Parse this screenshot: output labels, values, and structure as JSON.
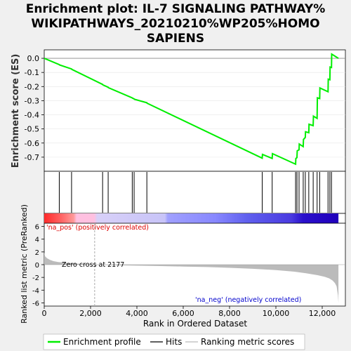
{
  "title_line1": "Enrichment plot: IL-7 SIGNALING PATHWAY%",
  "title_line2": "WIKIPATHWAYS_20210210%WP205%HOMO",
  "title_line3": "SAPIENS",
  "colors": {
    "es_line": "#00ee00",
    "hits": "#000000",
    "metric_fill": "#bbbbbb",
    "pos_label": "#dd0000",
    "neg_label": "#0000cc",
    "zero_line": "#aaaaaa",
    "heat_gradient": [
      "#ff3333",
      "#ff7777",
      "#ffbbdd",
      "#ccccf8",
      "#9999ff",
      "#5555ee",
      "#2200cc"
    ]
  },
  "chart_data": [
    {
      "type": "line",
      "name": "Enrichment profile",
      "ylabel": "Enrichment score (ES)",
      "xlim": [
        0,
        13000
      ],
      "ylim": [
        -0.8,
        0.06
      ],
      "yticks": [
        0.0,
        -0.1,
        -0.2,
        -0.3,
        -0.4,
        -0.5,
        -0.6,
        -0.7
      ],
      "ytick_labels": [
        "0.0",
        "-0.1",
        "-0.2",
        "-0.3",
        "-0.4",
        "-0.5",
        "-0.6",
        "-0.7"
      ],
      "x": [
        0,
        650,
        660,
        1180,
        1190,
        2520,
        2530,
        2760,
        2770,
        3800,
        3810,
        3880,
        3890,
        4430,
        4440,
        9410,
        9420,
        9840,
        9850,
        10850,
        10860,
        10910,
        10920,
        11000,
        11010,
        11180,
        11190,
        11270,
        11280,
        11420,
        11430,
        11610,
        11620,
        11780,
        11790,
        11890,
        11900,
        12250,
        12260,
        12330,
        12340,
        12400,
        12410,
        12700
      ],
      "y": [
        0.0,
        -0.045,
        -0.047,
        -0.075,
        -0.078,
        -0.185,
        -0.188,
        -0.205,
        -0.208,
        -0.28,
        -0.282,
        -0.287,
        -0.29,
        -0.315,
        -0.318,
        -0.707,
        -0.68,
        -0.709,
        -0.675,
        -0.75,
        -0.71,
        -0.703,
        -0.655,
        -0.648,
        -0.607,
        -0.625,
        -0.575,
        -0.56,
        -0.52,
        -0.527,
        -0.467,
        -0.477,
        -0.41,
        -0.425,
        -0.28,
        -0.285,
        -0.21,
        -0.237,
        -0.148,
        -0.152,
        -0.062,
        -0.065,
        0.03,
        0.0
      ]
    },
    {
      "type": "line",
      "name": "Hits",
      "x": [
        650,
        1180,
        2520,
        2760,
        3800,
        3880,
        4430,
        9410,
        9840,
        10850,
        10910,
        11000,
        11180,
        11270,
        11420,
        11610,
        11780,
        11890,
        12250,
        12330,
        12400
      ]
    },
    {
      "type": "area",
      "name": "Ranking metric scores",
      "ylabel": "Ranked list metric (PreRanked)",
      "xlabel": "Rank in Ordered Dataset",
      "xlim": [
        0,
        13000
      ],
      "ylim": [
        -6.5,
        6.5
      ],
      "xticks": [
        0,
        2000,
        4000,
        6000,
        8000,
        10000,
        12000
      ],
      "xtick_labels": [
        "0",
        "2,000",
        "4,000",
        "6,000",
        "8,000",
        "10,000",
        "12,000"
      ],
      "yticks": [
        6,
        4,
        2,
        0,
        -2,
        -4,
        -6
      ],
      "ytick_labels": [
        "6",
        "4",
        "2",
        "0",
        "-2",
        "-4",
        "-6"
      ],
      "x": [
        0,
        40,
        120,
        250,
        400,
        600,
        900,
        1300,
        1700,
        2177,
        3000,
        4000,
        5000,
        6000,
        7000,
        8000,
        9000,
        10000,
        10800,
        11300,
        11800,
        12100,
        12300,
        12450,
        12550,
        12620,
        12680,
        12700
      ],
      "y": [
        1.9,
        1.3,
        1.0,
        0.75,
        0.55,
        0.42,
        0.3,
        0.2,
        0.1,
        0.0,
        -0.08,
        -0.15,
        -0.22,
        -0.3,
        -0.38,
        -0.5,
        -0.65,
        -0.85,
        -1.1,
        -1.35,
        -1.65,
        -1.9,
        -2.15,
        -2.5,
        -2.9,
        -3.4,
        -4.8,
        -6.0
      ],
      "zero_cross_label": "Zero cross at 2177",
      "zero_cross_x": 2177,
      "pos_label": "'na_pos' (positively correlated)",
      "neg_label": "'na_neg' (negatively correlated)"
    }
  ],
  "legend": [
    {
      "label": "Enrichment profile",
      "symbol": "green-line"
    },
    {
      "label": "Hits",
      "symbol": "black-line"
    },
    {
      "label": "Ranking metric scores",
      "symbol": "gray-line"
    }
  ]
}
